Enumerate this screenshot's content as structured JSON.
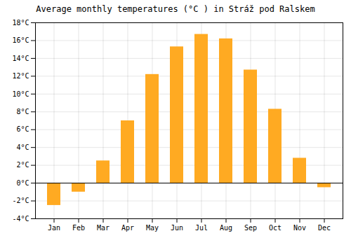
{
  "chart_data": {
    "type": "bar",
    "title": "Average monthly temperatures (°C ) in Stráž pod Ralskem",
    "categories": [
      "Jan",
      "Feb",
      "Mar",
      "Apr",
      "May",
      "Jun",
      "Jul",
      "Aug",
      "Sep",
      "Oct",
      "Nov",
      "Dec"
    ],
    "values": [
      -2.5,
      -1.0,
      2.5,
      7.0,
      12.2,
      15.3,
      16.7,
      16.2,
      12.7,
      8.3,
      2.8,
      -0.5
    ],
    "color": "#FFAA22",
    "ylim": [
      -4,
      18
    ],
    "yticks": [
      {
        "value": -4,
        "label": "-4°C"
      },
      {
        "value": -2,
        "label": "-2°C"
      },
      {
        "value": 0,
        "label": "0°C"
      },
      {
        "value": 2,
        "label": "2°C"
      },
      {
        "value": 4,
        "label": "4°C"
      },
      {
        "value": 6,
        "label": "6°C"
      },
      {
        "value": 8,
        "label": "8°C"
      },
      {
        "value": 10,
        "label": "10°C"
      },
      {
        "value": 12,
        "label": "12°C"
      },
      {
        "value": 14,
        "label": "14°C"
      },
      {
        "value": 16,
        "label": "16°C"
      },
      {
        "value": 18,
        "label": "18°C"
      }
    ],
    "grid": true
  }
}
